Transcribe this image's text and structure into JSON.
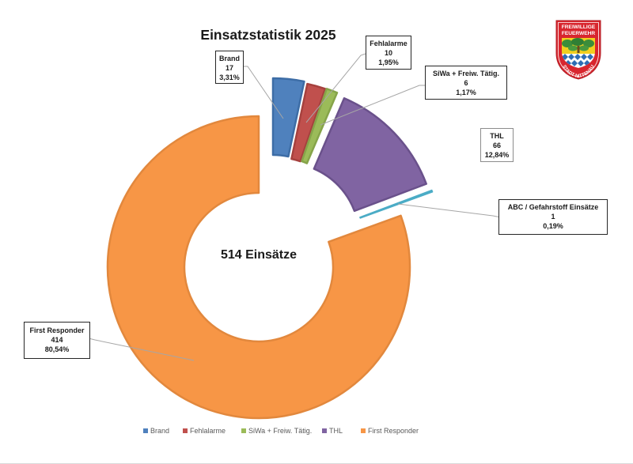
{
  "title": "Einsatzstatistik 2025",
  "center_label": "514 Einsätze",
  "logo": {
    "line1": "FREIWILLIGE",
    "line2": "FEUERWEHR",
    "bottom": "STADT NITTENAU"
  },
  "legend": {
    "items": [
      {
        "label": "Brand",
        "color": "#4F81BD"
      },
      {
        "label": "Fehlalarme",
        "color": "#C0504D"
      },
      {
        "label": "SiWa + Freiw. Tätig.",
        "color": "#9BBB59"
      },
      {
        "label": "THL",
        "color": "#8064A2"
      },
      {
        "label": "First Responder",
        "color": "#F79646"
      }
    ]
  },
  "chart_data": {
    "type": "pie",
    "variant": "doughnut",
    "title": "Einsatzstatistik 2025",
    "center_text": "514 Einsätze",
    "total": 514,
    "categories": [
      "Brand",
      "Fehlalarme",
      "SiWa + Freiw. Tätig.",
      "THL",
      "ABC / Gefahrstoff Einsätze",
      "First Responder"
    ],
    "values": [
      17,
      10,
      6,
      66,
      1,
      414
    ],
    "percentages": [
      "3,31%",
      "1,95%",
      "1,17%",
      "12,84%",
      "0,19%",
      "80,54%"
    ],
    "colors": [
      "#4F81BD",
      "#C0504D",
      "#9BBB59",
      "#8064A2",
      "#4BACC6",
      "#F79646"
    ],
    "exploded": [
      true,
      true,
      true,
      true,
      true,
      false
    ],
    "start_angle_deg": 0,
    "direction": "clockwise",
    "legend_position": "bottom",
    "legend_entries": [
      "Brand",
      "Fehlalarme",
      "SiWa + Freiw. Tätig.",
      "THL",
      "First Responder"
    ],
    "data_labels": true,
    "xlabel": "",
    "ylabel": ""
  }
}
